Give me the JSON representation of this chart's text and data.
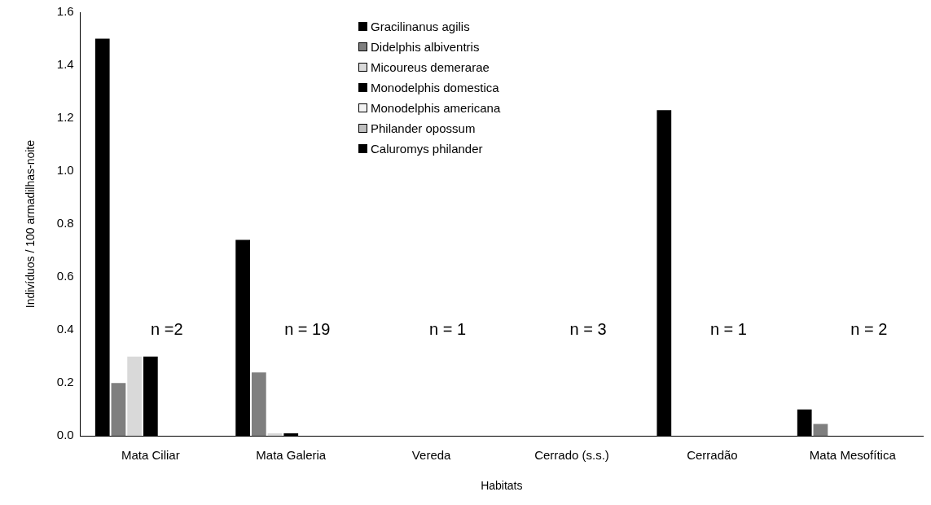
{
  "chart_data": {
    "type": "bar",
    "xlabel": "Habitats",
    "ylabel": "Indivíduos / 100 armadilhas-noite",
    "categories": [
      "Mata Ciliar",
      "Mata Galeria",
      "Vereda",
      "Cerrado (s.s.)",
      "Cerradão",
      "Mata Mesofítica"
    ],
    "series": [
      {
        "name": "Gracilinanus agilis",
        "color": "#000000",
        "values": [
          1.5,
          0.74,
          0,
          0,
          1.23,
          0.1
        ]
      },
      {
        "name": "Didelphis albiventris",
        "color": "#7f7f7f",
        "values": [
          0.2,
          0.24,
          0,
          0,
          0,
          0.045
        ]
      },
      {
        "name": "Micoureus demerarae",
        "color": "#d9d9d9",
        "values": [
          0.3,
          0.01,
          0,
          0,
          0,
          0
        ]
      },
      {
        "name": "Monodelphis domestica",
        "color": "#000000",
        "values": [
          0.3,
          0.01,
          0,
          0,
          0,
          0
        ]
      },
      {
        "name": "Monodelphis americana",
        "color": "#f2f2f2",
        "values": [
          0,
          0,
          0,
          0,
          0,
          0
        ]
      },
      {
        "name": "Philander opossum",
        "color": "#bfbfbf",
        "values": [
          0,
          0,
          0,
          0,
          0,
          0
        ]
      },
      {
        "name": "Caluromys philander",
        "color": "#000000",
        "values": [
          0,
          0,
          0,
          0,
          0,
          0
        ]
      }
    ],
    "ylim": [
      0,
      1.6
    ],
    "yticks": [
      {
        "value": 0,
        "label": "0.0"
      },
      0.2,
      0.4,
      0.6,
      0.8,
      {
        "value": 1,
        "label": "1.0"
      },
      1.2,
      1.4,
      1.6
    ],
    "grid": false,
    "legend": "top",
    "annotations": [
      "n =2",
      "n = 19",
      "n = 1",
      "n = 3",
      "n = 1",
      "n = 2"
    ]
  }
}
